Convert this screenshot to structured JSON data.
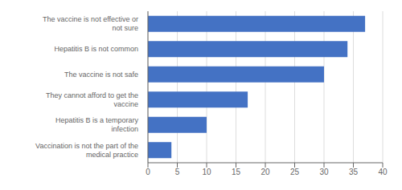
{
  "chart_data": {
    "type": "bar",
    "orientation": "horizontal",
    "categories": [
      "Vaccination is not the part of the medical practice",
      "Hepatitis B is a temporary infection",
      "They cannot afford to get the vaccine",
      "The vaccine is not safe",
      "Hepatitis B is not common",
      "The vaccine is not effective or not sure"
    ],
    "values": [
      4,
      10,
      17,
      30,
      34,
      37
    ],
    "color": "#4472c4",
    "xlim": [
      0,
      40
    ],
    "xticks": [
      0,
      5,
      10,
      15,
      20,
      25,
      30,
      35,
      40
    ],
    "grid": true
  }
}
